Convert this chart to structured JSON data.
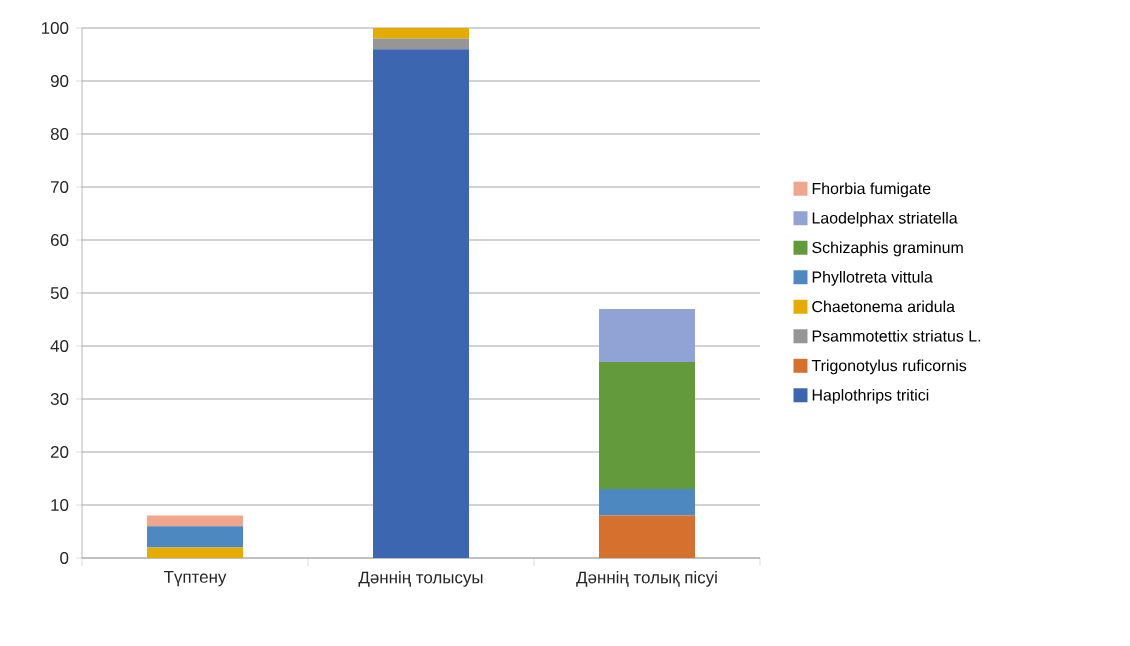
{
  "chart_data": {
    "type": "bar",
    "stacked": true,
    "categories": [
      "Түптену",
      "Дәннің толысуы",
      "Дәннің толық пісуі"
    ],
    "series": [
      {
        "name": "Haplothrips tritici",
        "color": "#3c66b0",
        "values": [
          null,
          96,
          null
        ]
      },
      {
        "name": "Trigonotylus ruficornis",
        "color": "#d5702e",
        "values": [
          null,
          null,
          8
        ]
      },
      {
        "name": "Psammotettix striatus L.",
        "color": "#969696",
        "values": [
          null,
          2,
          null
        ]
      },
      {
        "name": "Chaetonema  aridula",
        "color": "#e4ac00",
        "values": [
          2,
          2,
          null
        ]
      },
      {
        "name": "Phyllotreta vittula",
        "color": "#4e88c0",
        "values": [
          4,
          null,
          5
        ]
      },
      {
        "name": "Schizaphis graminum",
        "color": "#629a3c",
        "values": [
          null,
          null,
          24
        ]
      },
      {
        "name": "Laodelphax striatella",
        "color": "#91a3d5",
        "values": [
          null,
          null,
          10
        ]
      },
      {
        "name": "Fhorbia fumigate",
        "color": "#f0a68c",
        "values": [
          2,
          null,
          null
        ]
      }
    ],
    "ylim": [
      0,
      100
    ],
    "yticks": [
      0,
      10,
      20,
      30,
      40,
      50,
      60,
      70,
      80,
      90,
      100
    ],
    "grid": "y",
    "legend": "right"
  }
}
